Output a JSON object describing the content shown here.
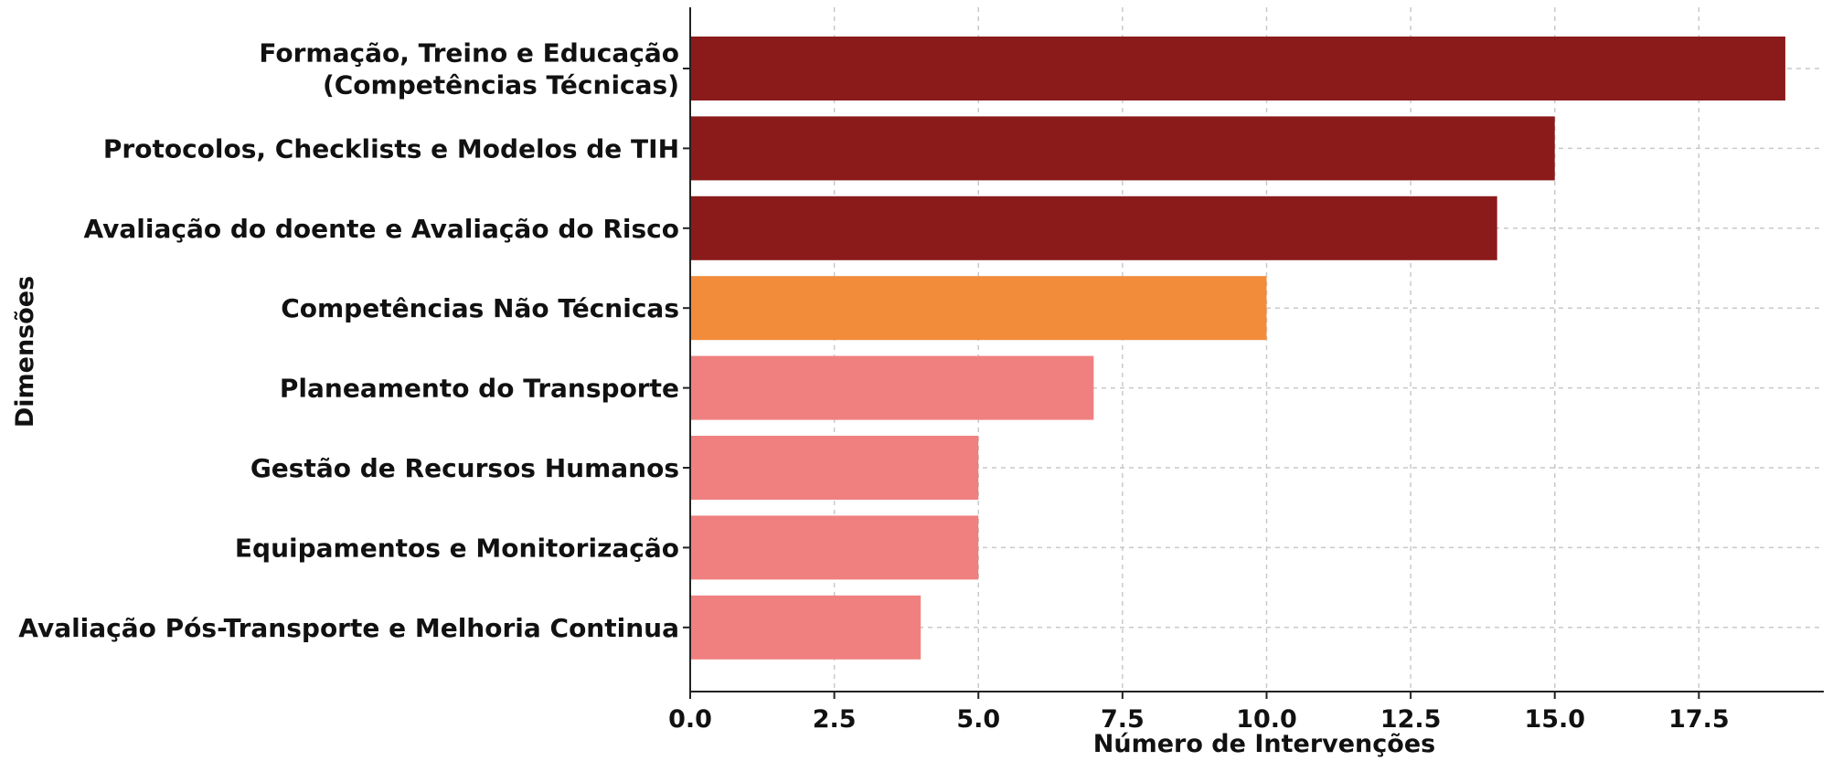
{
  "chart_data": {
    "type": "bar",
    "orientation": "horizontal",
    "title": "",
    "xlabel": "Número de Intervenções",
    "ylabel": "Dimensões",
    "xlim": [
      0,
      19.9
    ],
    "xticks": [
      "0.0",
      "2.5",
      "5.0",
      "7.5",
      "10.0",
      "12.5",
      "15.0",
      "17.5"
    ],
    "xtick_values": [
      0,
      2.5,
      5,
      7.5,
      10,
      12.5,
      15,
      17.5
    ],
    "grid": true,
    "categories": [
      {
        "lines": [
          "Formação, Treino e Educação",
          "(Competências Técnicas)"
        ]
      },
      {
        "lines": [
          "Protocolos, Checklists e Modelos de TIH"
        ]
      },
      {
        "lines": [
          "Avaliação do doente e Avaliação do Risco"
        ]
      },
      {
        "lines": [
          "Competências Não Técnicas"
        ]
      },
      {
        "lines": [
          "Planeamento do Transporte"
        ]
      },
      {
        "lines": [
          "Gestão de Recursos Humanos"
        ]
      },
      {
        "lines": [
          "Equipamentos e Monitorização"
        ]
      },
      {
        "lines": [
          "Avaliação Pós-Transporte e Melhoria Continua"
        ]
      }
    ],
    "values": [
      19,
      15,
      14,
      10,
      7,
      5,
      5,
      4
    ],
    "colors": [
      "#8b1b1b",
      "#8b1b1b",
      "#8b1b1b",
      "#f28c3b",
      "#f08080",
      "#f08080",
      "#f08080",
      "#f08080"
    ]
  }
}
